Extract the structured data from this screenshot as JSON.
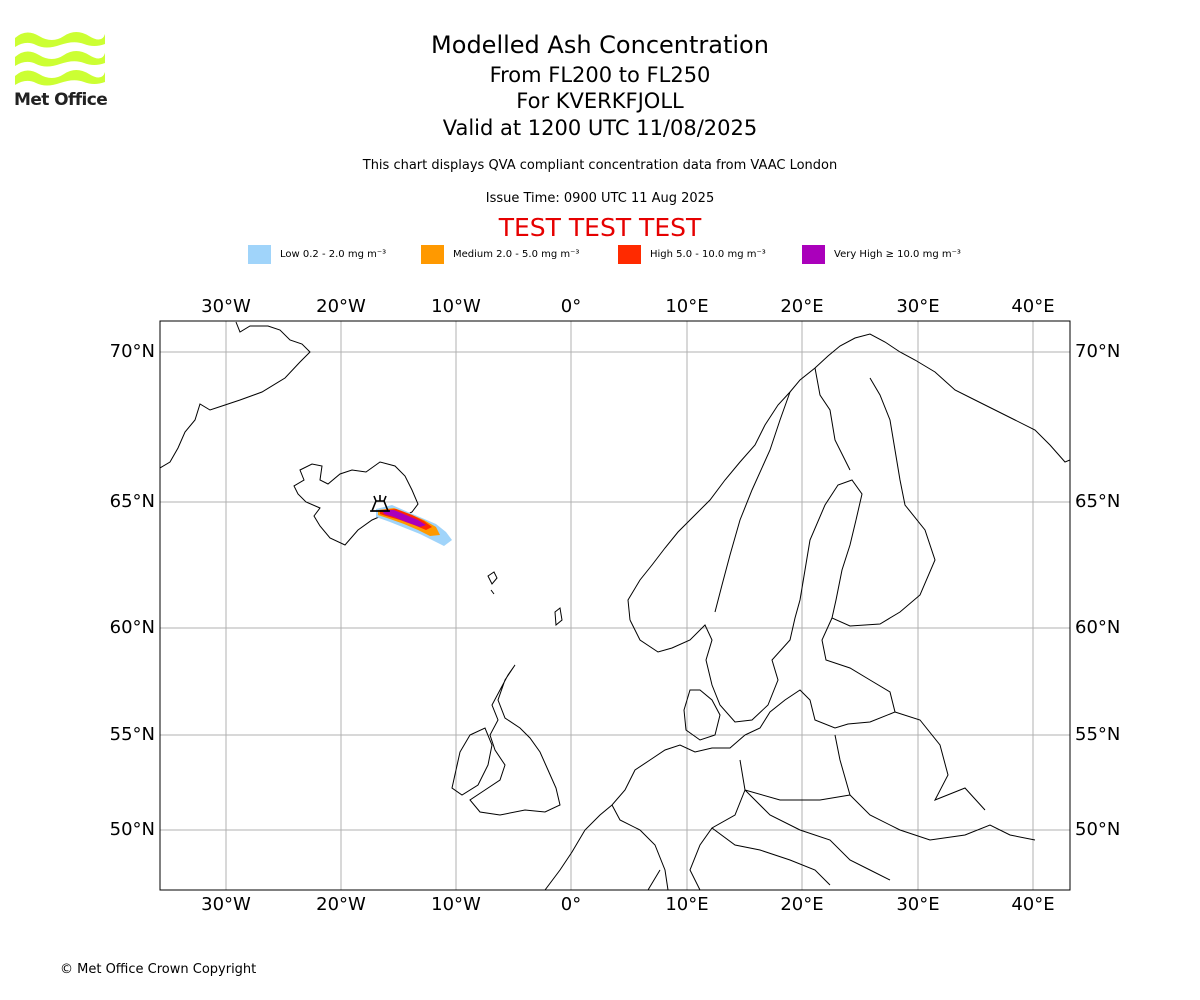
{
  "logo": {
    "text": "Met Office",
    "color": "#ccff33"
  },
  "header": {
    "title": "Modelled Ash Concentration",
    "levels": "From FL200 to FL250",
    "volcano": "For KVERKFJOLL",
    "valid": "Valid at 1200 UTC 11/08/2025",
    "subtitle": "This chart displays QVA compliant concentration data from VAAC London",
    "issue": "Issue Time: 0900 UTC 11 Aug 2025",
    "test_banner": "TEST TEST TEST"
  },
  "legend": [
    {
      "label": "Low 0.2 - 2.0 mg m⁻³",
      "color": "#a0d4fa"
    },
    {
      "label": "Medium 2.0 - 5.0 mg m⁻³",
      "color": "#ff9900"
    },
    {
      "label": "High 5.0 - 10.0 mg m⁻³",
      "color": "#ff2a00"
    },
    {
      "label": "Very High  ≥  10.0 mg m⁻³",
      "color": "#aa00bb"
    }
  ],
  "map": {
    "lon_labels": [
      "30°W",
      "20°W",
      "10°W",
      "0°",
      "10°E",
      "20°E",
      "30°E",
      "40°E"
    ],
    "lat_labels": [
      "70°N",
      "65°N",
      "60°N",
      "55°N",
      "50°N"
    ],
    "volcano_name": "KVERKFJOLL",
    "volcano_icon": "volcano-icon"
  },
  "footer": {
    "copyright": "© Met Office Crown Copyright"
  }
}
